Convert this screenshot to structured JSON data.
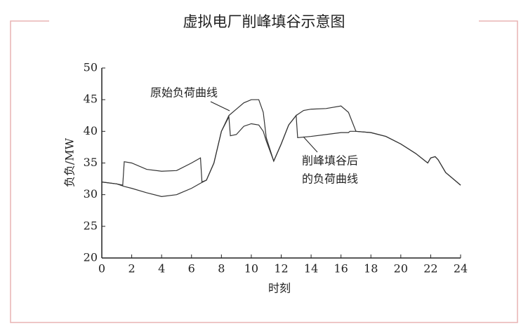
{
  "chart_data": {
    "type": "line",
    "title": "虚拟电厂削峰填谷示意图",
    "xlabel": "时刻",
    "ylabel": "负负/MW",
    "xlim": [
      0,
      24
    ],
    "xticks": [
      0,
      2,
      4,
      6,
      8,
      10,
      12,
      14,
      16,
      18,
      20,
      22,
      24
    ],
    "ylim": [
      20,
      50
    ],
    "yticks": [
      20,
      25,
      30,
      35,
      40,
      45,
      50
    ],
    "annotations": [
      "原始负荷曲线",
      "削峰填谷后",
      "的负荷曲线"
    ],
    "series": [
      {
        "name": "原始负荷曲线",
        "color": "#333333",
        "x": [
          0,
          1,
          1.5,
          2,
          3,
          4,
          5,
          6,
          6.6,
          7,
          7.5,
          8,
          8.5,
          9,
          9.5,
          10,
          10.5,
          10.8,
          11,
          11.5,
          12,
          12.5,
          13,
          13.5,
          14,
          15,
          16,
          16.5,
          17,
          18,
          19,
          20,
          21,
          21.8,
          22,
          22.3,
          22.5,
          23,
          24
        ],
        "values": [
          32,
          31.7,
          31.3,
          31,
          30.3,
          29.7,
          30,
          31,
          31.8,
          32.3,
          35,
          40,
          42.5,
          43.5,
          44.5,
          45,
          45,
          43,
          39,
          35.3,
          38,
          41,
          42.5,
          43.3,
          43.5,
          43.6,
          44,
          43,
          40,
          39.8,
          39.2,
          38,
          36.5,
          35,
          35.8,
          36,
          35.5,
          33.5,
          31.5
        ]
      },
      {
        "name": "削峰填谷后的负荷曲线",
        "color": "#333333",
        "x": [
          0,
          1,
          1.4,
          1.5,
          2,
          3,
          4,
          5,
          6,
          6.6,
          6.7,
          7,
          7.5,
          8,
          8.5,
          8.6,
          9,
          9.5,
          10,
          10.5,
          10.8,
          11,
          11.5,
          12,
          12.5,
          13,
          13.1,
          14,
          15,
          16,
          16.5,
          16.6,
          17,
          18,
          19,
          20,
          21,
          21.8,
          22,
          22.3,
          22.5,
          23,
          24
        ],
        "values": [
          32,
          31.7,
          31.5,
          35.2,
          35,
          34,
          33.7,
          33.8,
          35,
          35.8,
          32,
          32.3,
          35,
          40,
          42.3,
          39.3,
          39.5,
          40.8,
          41.2,
          41,
          40,
          38.5,
          35.3,
          38,
          41,
          42.5,
          39,
          39.2,
          39.5,
          39.8,
          39.8,
          40,
          40,
          39.8,
          39.2,
          38,
          36.5,
          35,
          35.8,
          36,
          35.5,
          33.5,
          31.5
        ]
      }
    ]
  }
}
